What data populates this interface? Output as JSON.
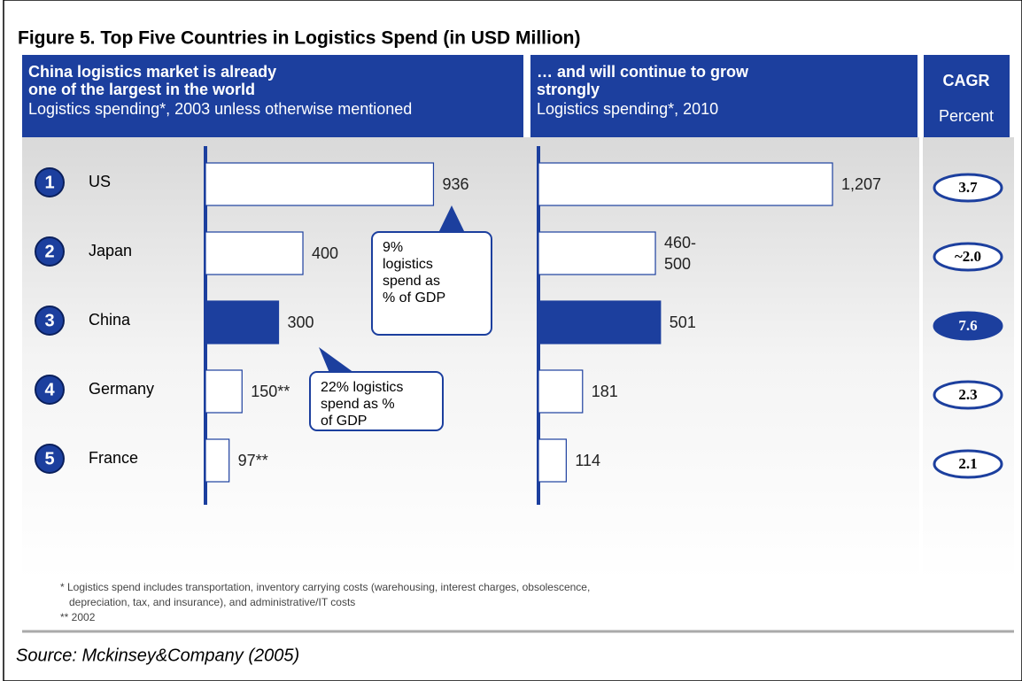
{
  "figure_title": "Figure 5. Top Five Countries in Logistics Spend (in USD Million)",
  "ranks": [
    1,
    2,
    3,
    4,
    5
  ],
  "chart_data": [
    {
      "type": "hbar",
      "title": [
        "China logistics market is already",
        "one of the largest in the world"
      ],
      "subtitle": "Logistics spending*, 2003 unless otherwise mentioned",
      "categories": [
        "US",
        "Japan",
        "China",
        "Germany",
        "France"
      ],
      "values": [
        936,
        400,
        300,
        150,
        97
      ],
      "value_labels": [
        "936",
        "400",
        "300",
        "150**",
        "97**"
      ],
      "colors": [
        "#ffffff",
        "#ffffff",
        "#1c3f9e",
        "#ffffff",
        "#ffffff"
      ]
    },
    {
      "type": "hbar",
      "title": [
        "… and will continue to grow",
        "strongly"
      ],
      "subtitle": "Logistics spending*, 2010",
      "categories": [
        null,
        null,
        null,
        null,
        null
      ],
      "values": [
        1207,
        480,
        501,
        181,
        114
      ],
      "value_labels": [
        "1,207",
        "460-500",
        "501",
        "181",
        "114"
      ],
      "colors": [
        "#ffffff",
        "#ffffff",
        "#1c3f9e",
        "#ffffff",
        "#ffffff"
      ]
    },
    {
      "type": "oval",
      "title": [
        "CAGR"
      ],
      "subtitle": "Percent",
      "categories": [
        null,
        null,
        null,
        null,
        null
      ],
      "values": [
        3.7,
        2.0,
        7.6,
        2.3,
        2.1
      ],
      "value_labels": [
        "3.7",
        "~2.0",
        "7.6",
        "2.3",
        "2.1"
      ],
      "colors": [
        "#ffffff",
        "#ffffff",
        "#1c3f9e",
        "#ffffff",
        "#ffffff"
      ]
    }
  ],
  "annotations": [
    {
      "lines": [
        "9%",
        "logistics",
        "spend as",
        "% of GDP"
      ]
    },
    {
      "lines": [
        "22% logistics",
        "spend as %",
        "of GDP"
      ]
    }
  ],
  "footnotes": [
    "* Logistics spend includes transportation, inventory carrying costs (warehousing, interest charges, obsolescence,",
    "depreciation, tax, and insurance), and administrative/IT costs",
    "** 2002"
  ],
  "source": "Source: Mckinsey&Company (2005)"
}
